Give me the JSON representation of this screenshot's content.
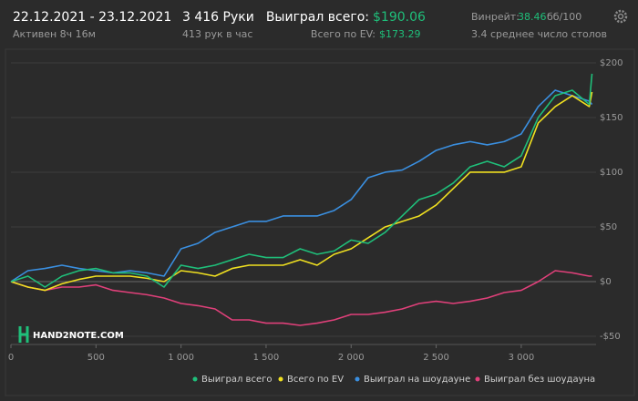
{
  "header": {
    "dates": "22.12.2021 - 23.12.2021",
    "active": "Активен 8ч 16м",
    "hands": "3 416 Руки",
    "hands_per_hour": "413 рук в час",
    "won_label": "Выиграл всего:",
    "won_value": "$190.06",
    "ev_label": "Всего по EV:",
    "ev_value": "$173.29",
    "winrate_label": "Винрейт:",
    "winrate_value": "38.46",
    "winrate_unit": "бб/100",
    "tables": "3.4 среднее число столов"
  },
  "logo": "HAND2NOTE.COM",
  "chart_data": {
    "type": "line",
    "x": [
      0,
      100,
      200,
      300,
      400,
      500,
      600,
      700,
      800,
      900,
      1000,
      1100,
      1200,
      1300,
      1400,
      1500,
      1600,
      1700,
      1800,
      1900,
      2000,
      2100,
      2200,
      2300,
      2400,
      2500,
      2600,
      2700,
      2800,
      2900,
      3000,
      3100,
      3200,
      3300,
      3400,
      3416
    ],
    "series": [
      {
        "name": "Выиграл всего",
        "color": "#1fbf7a",
        "values": [
          0,
          5,
          -5,
          5,
          10,
          12,
          8,
          8,
          5,
          -5,
          15,
          12,
          15,
          20,
          25,
          22,
          22,
          30,
          25,
          28,
          38,
          35,
          45,
          60,
          75,
          80,
          90,
          105,
          110,
          105,
          115,
          150,
          170,
          175,
          162,
          190.06
        ]
      },
      {
        "name": "Всего по EV",
        "color": "#f0e020",
        "values": [
          0,
          -5,
          -8,
          -2,
          2,
          5,
          5,
          5,
          3,
          0,
          10,
          8,
          5,
          12,
          15,
          15,
          15,
          20,
          15,
          25,
          30,
          40,
          50,
          55,
          60,
          70,
          85,
          100,
          100,
          100,
          105,
          145,
          160,
          170,
          160,
          173.29
        ]
      },
      {
        "name": "Выиграл на шоудауне",
        "color": "#3a8fe0",
        "values": [
          0,
          10,
          12,
          15,
          12,
          10,
          8,
          10,
          8,
          5,
          30,
          35,
          45,
          50,
          55,
          55,
          60,
          60,
          60,
          65,
          75,
          95,
          100,
          102,
          110,
          120,
          125,
          128,
          125,
          128,
          135,
          160,
          175,
          170,
          165,
          162
        ]
      },
      {
        "name": "Выиграл без шоудауна",
        "color": "#e0407a",
        "values": [
          0,
          -5,
          -8,
          -5,
          -5,
          -3,
          -8,
          -10,
          -12,
          -15,
          -20,
          -22,
          -25,
          -35,
          -35,
          -38,
          -38,
          -40,
          -38,
          -35,
          -30,
          -30,
          -28,
          -25,
          -20,
          -18,
          -20,
          -18,
          -15,
          -10,
          -8,
          0,
          10,
          8,
          5,
          5
        ]
      }
    ],
    "xlim": [
      0,
      3440
    ],
    "ylim": [
      -57.5,
      205.8
    ],
    "xticks": [
      0,
      500,
      {
        "value": 1000,
        "label": "1 000"
      },
      {
        "value": 1500,
        "label": "1 500"
      },
      {
        "value": 2000,
        "label": "2 000"
      },
      {
        "value": 2500,
        "label": "2 500"
      },
      {
        "value": 3000,
        "label": "3 000"
      }
    ],
    "yticks": [
      {
        "value": -50,
        "label": "-$50"
      },
      {
        "value": 0,
        "label": "$0"
      },
      {
        "value": 50,
        "label": "$50"
      },
      {
        "value": 100,
        "label": "$100"
      },
      {
        "value": 150,
        "label": "$150"
      },
      {
        "value": 200,
        "label": "$200"
      }
    ],
    "grid": true
  }
}
